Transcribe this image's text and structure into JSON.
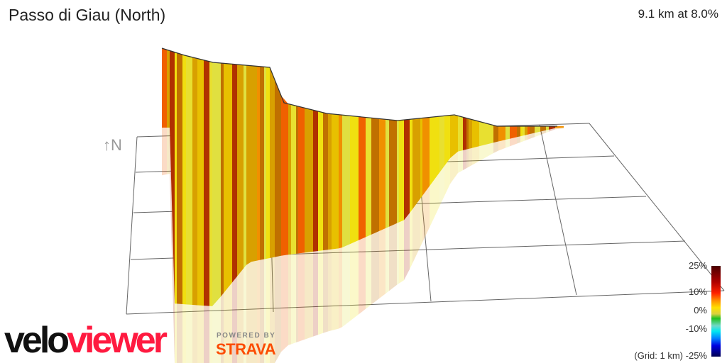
{
  "header": {
    "title": "Passo di Giau (North)",
    "stats": "9.1 km at 8.0%"
  },
  "compass": {
    "label": "↑N",
    "icon": "north-arrow-icon"
  },
  "legend": {
    "labels": [
      "25%",
      "10%",
      "0%",
      "-10%"
    ],
    "grid_note": "(Grid: 1 km)",
    "min_label": "-25%",
    "colors": {
      "max": "#4a0000",
      "high": "#ff2000",
      "mid": "#ffe000",
      "zero": "#20c020",
      "neg": "#00e8f0",
      "min": "#000050"
    }
  },
  "branding": {
    "logo_part1": "velo",
    "logo_part2": "viewer",
    "powered_by": "POWERED BY",
    "strava": "STRAVA",
    "colors": {
      "velo": "#111111",
      "viewer": "#ff1a40",
      "strava": "#fc4c02"
    }
  }
}
